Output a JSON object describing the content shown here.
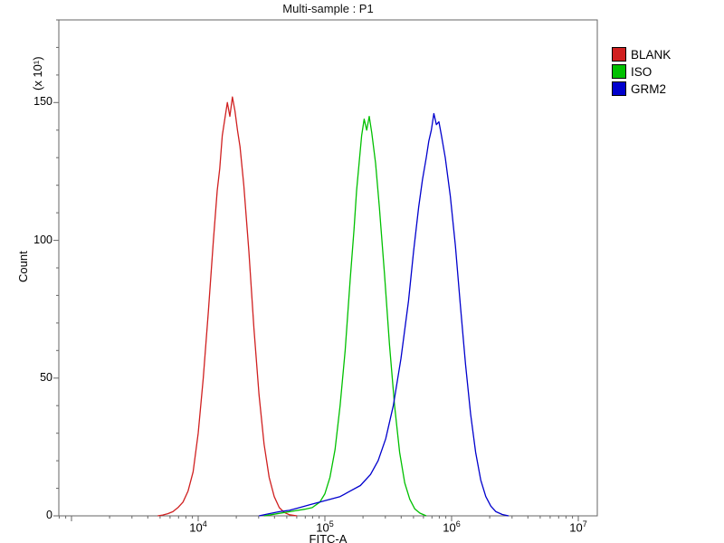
{
  "chart_data": {
    "type": "line",
    "title": "Multi-sample : P1",
    "xlabel": "FITC-A",
    "ylabel": "Count",
    "y_unit_label": "(x 10¹)",
    "x_scale": "log10",
    "xlog_range": [
      2.9,
      7.15
    ],
    "ylim": [
      0,
      180
    ],
    "yticks": [
      0,
      50,
      100,
      150
    ],
    "y_minor_step": 10,
    "xticks": [
      {
        "base": "10",
        "exp": "4",
        "value": 4
      },
      {
        "base": "10",
        "exp": "5",
        "value": 5
      },
      {
        "base": "10",
        "exp": "6",
        "value": 6
      },
      {
        "base": "10",
        "exp": "7",
        "value": 7
      }
    ],
    "legend_position": "top-right-outside",
    "grid": false,
    "frame_color": "#666666",
    "series": [
      {
        "name": "BLANK",
        "color": "#d02020",
        "points": [
          [
            3.68,
            0
          ],
          [
            3.72,
            0.3
          ],
          [
            3.76,
            0.8
          ],
          [
            3.8,
            1.5
          ],
          [
            3.84,
            3
          ],
          [
            3.88,
            5
          ],
          [
            3.92,
            9
          ],
          [
            3.96,
            16
          ],
          [
            4.0,
            30
          ],
          [
            4.04,
            50
          ],
          [
            4.08,
            74
          ],
          [
            4.12,
            100
          ],
          [
            4.15,
            118
          ],
          [
            4.17,
            126
          ],
          [
            4.19,
            138
          ],
          [
            4.21,
            144
          ],
          [
            4.23,
            150
          ],
          [
            4.25,
            145
          ],
          [
            4.27,
            152
          ],
          [
            4.29,
            147
          ],
          [
            4.31,
            140
          ],
          [
            4.33,
            134
          ],
          [
            4.36,
            120
          ],
          [
            4.4,
            96
          ],
          [
            4.44,
            68
          ],
          [
            4.48,
            44
          ],
          [
            4.52,
            26
          ],
          [
            4.56,
            14
          ],
          [
            4.6,
            7
          ],
          [
            4.64,
            3
          ],
          [
            4.68,
            1.2
          ],
          [
            4.72,
            0.4
          ],
          [
            4.78,
            0
          ]
        ]
      },
      {
        "name": "ISO",
        "color": "#00c000",
        "points": [
          [
            4.52,
            0
          ],
          [
            4.6,
            0.6
          ],
          [
            4.68,
            1.2
          ],
          [
            4.76,
            1.8
          ],
          [
            4.84,
            2.4
          ],
          [
            4.9,
            3
          ],
          [
            4.96,
            5
          ],
          [
            5.0,
            8
          ],
          [
            5.04,
            14
          ],
          [
            5.08,
            24
          ],
          [
            5.12,
            40
          ],
          [
            5.16,
            60
          ],
          [
            5.2,
            86
          ],
          [
            5.23,
            104
          ],
          [
            5.25,
            118
          ],
          [
            5.27,
            128
          ],
          [
            5.29,
            138
          ],
          [
            5.31,
            144
          ],
          [
            5.33,
            140
          ],
          [
            5.35,
            145
          ],
          [
            5.37,
            139
          ],
          [
            5.4,
            128
          ],
          [
            5.43,
            112
          ],
          [
            5.47,
            88
          ],
          [
            5.51,
            62
          ],
          [
            5.55,
            40
          ],
          [
            5.59,
            23
          ],
          [
            5.63,
            12
          ],
          [
            5.67,
            6
          ],
          [
            5.71,
            2.5
          ],
          [
            5.75,
            1
          ],
          [
            5.8,
            0
          ]
        ]
      },
      {
        "name": "GRM2",
        "color": "#0000cd",
        "points": [
          [
            4.48,
            0
          ],
          [
            4.56,
            0.8
          ],
          [
            4.64,
            1.5
          ],
          [
            4.72,
            2
          ],
          [
            4.8,
            3
          ],
          [
            4.88,
            4
          ],
          [
            4.96,
            5
          ],
          [
            5.04,
            6
          ],
          [
            5.12,
            7
          ],
          [
            5.2,
            9
          ],
          [
            5.28,
            11
          ],
          [
            5.36,
            15
          ],
          [
            5.42,
            20
          ],
          [
            5.48,
            28
          ],
          [
            5.54,
            40
          ],
          [
            5.6,
            57
          ],
          [
            5.66,
            78
          ],
          [
            5.7,
            96
          ],
          [
            5.74,
            112
          ],
          [
            5.77,
            122
          ],
          [
            5.8,
            130
          ],
          [
            5.82,
            136
          ],
          [
            5.84,
            140
          ],
          [
            5.86,
            146
          ],
          [
            5.88,
            142
          ],
          [
            5.9,
            143
          ],
          [
            5.92,
            138
          ],
          [
            5.95,
            130
          ],
          [
            5.99,
            116
          ],
          [
            6.03,
            98
          ],
          [
            6.07,
            76
          ],
          [
            6.11,
            55
          ],
          [
            6.15,
            37
          ],
          [
            6.19,
            23
          ],
          [
            6.23,
            13
          ],
          [
            6.27,
            7
          ],
          [
            6.31,
            3.5
          ],
          [
            6.35,
            1.5
          ],
          [
            6.4,
            0.5
          ],
          [
            6.45,
            0
          ]
        ]
      }
    ]
  }
}
